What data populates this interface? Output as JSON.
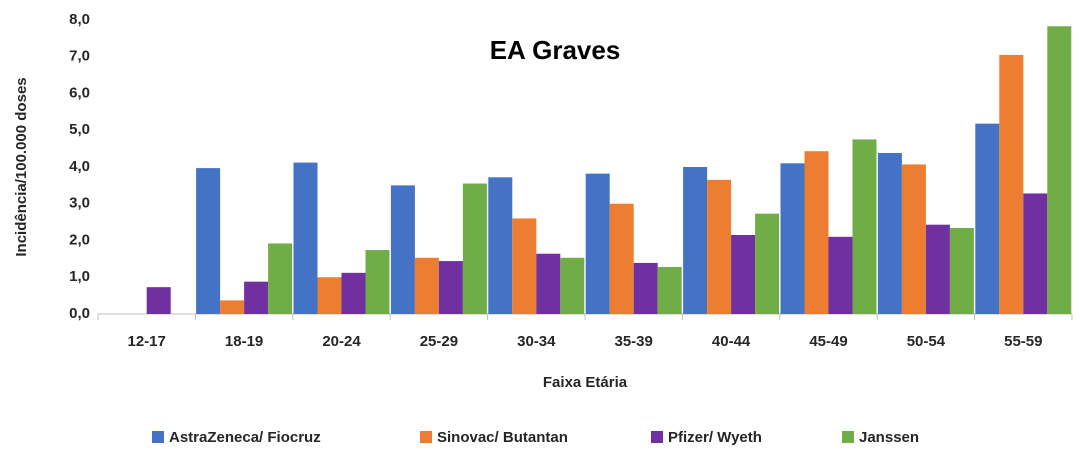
{
  "chart_data": {
    "type": "bar",
    "title": "EA Graves",
    "x_label": "Faixa Etária",
    "y_label": "Incidência/100.000 doses",
    "categories": [
      "12-17",
      "18-19",
      "20-24",
      "25-29",
      "30-34",
      "35-39",
      "40-44",
      "45-49",
      "50-54",
      "55-59"
    ],
    "series": [
      {
        "name": "AstraZeneca/ Fiocruz",
        "color": "#4472c4",
        "values": [
          null,
          3.97,
          4.12,
          3.5,
          3.72,
          3.82,
          4.0,
          4.1,
          4.38,
          5.18
        ]
      },
      {
        "name": "Sinovac/ Butantan",
        "color": "#ed7d31",
        "values": [
          null,
          0.37,
          1.0,
          1.53,
          2.6,
          3.0,
          3.65,
          4.43,
          4.07,
          7.05
        ]
      },
      {
        "name": "Pfizer/ Wyeth",
        "color": "#7030a0",
        "values": [
          0.73,
          0.88,
          1.12,
          1.44,
          1.64,
          1.39,
          2.15,
          2.1,
          2.43,
          3.28
        ]
      },
      {
        "name": "Janssen",
        "color": "#70ad47",
        "values": [
          null,
          1.92,
          1.74,
          3.55,
          1.53,
          1.28,
          2.73,
          4.75,
          2.34,
          7.83
        ]
      }
    ],
    "ylim": [
      0,
      8
    ],
    "yticks": [
      {
        "value": 0,
        "label": "0,0"
      },
      {
        "value": 1,
        "label": "1,0"
      },
      {
        "value": 2,
        "label": "2,0"
      },
      {
        "value": 3,
        "label": "3,0"
      },
      {
        "value": 4,
        "label": "4,0"
      },
      {
        "value": 5,
        "label": "5,0"
      },
      {
        "value": 6,
        "label": "6,0"
      },
      {
        "value": 7,
        "label": "7,0"
      },
      {
        "value": 8,
        "label": "8,0"
      }
    ],
    "grid": false,
    "legend": "bottom"
  }
}
